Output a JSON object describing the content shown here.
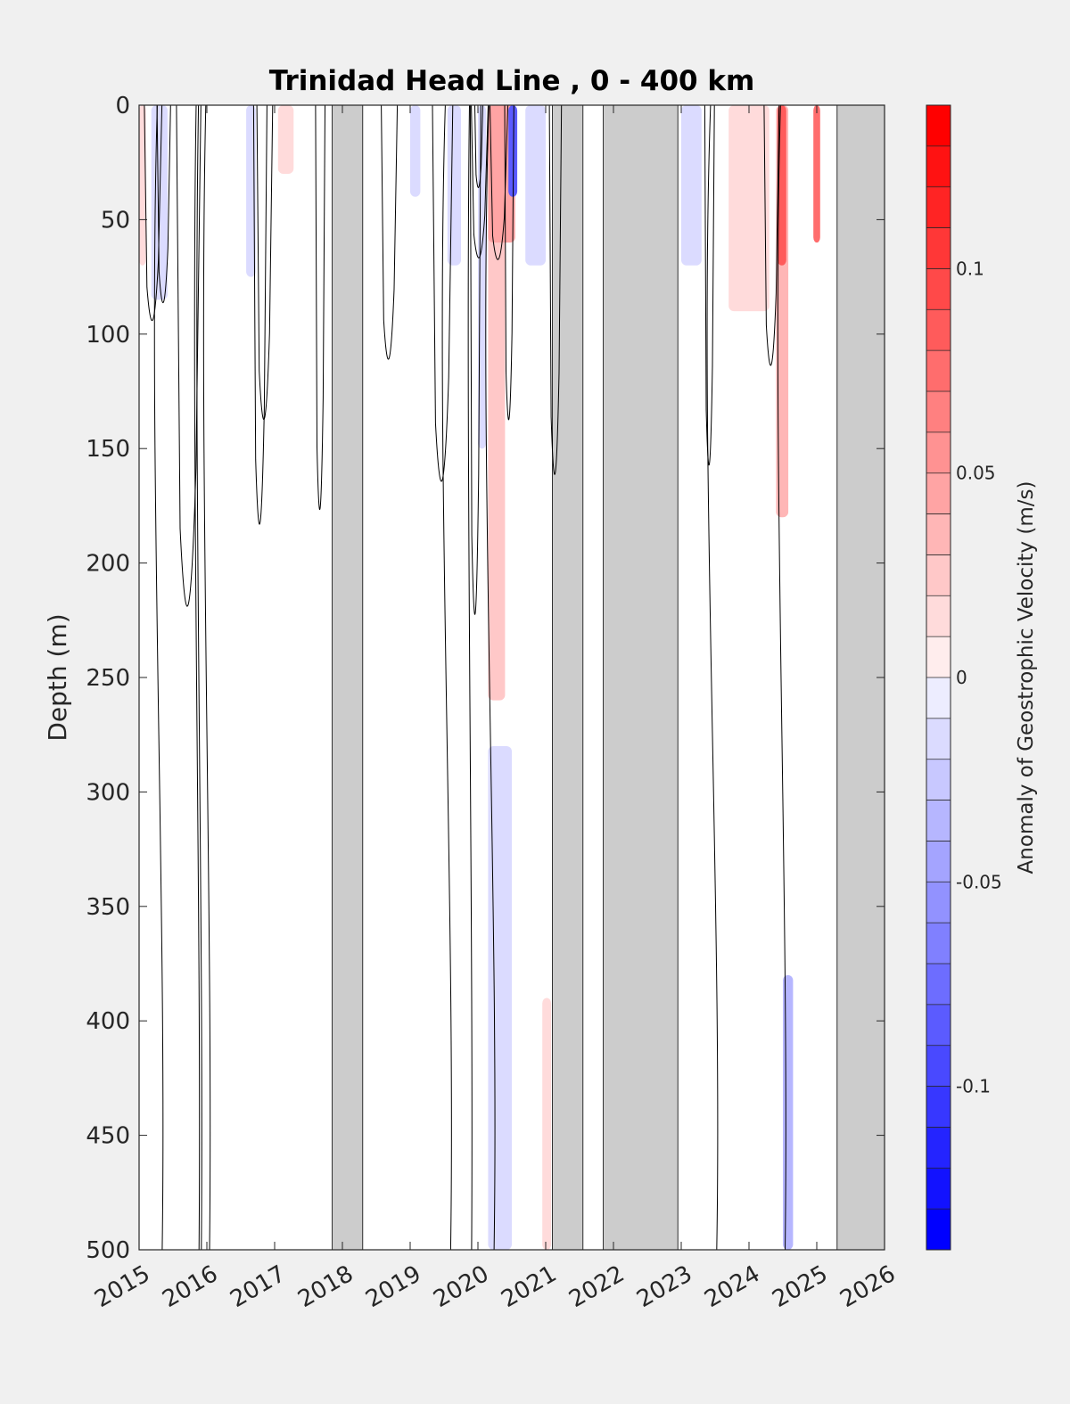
{
  "chart_data": {
    "type": "heatmap",
    "title": "Trinidad Head Line , 0 - 400 km",
    "xlabel": "",
    "ylabel": "Depth (m)",
    "x_ticks": [
      "2015",
      "2016",
      "2017",
      "2018",
      "2019",
      "2020",
      "2021",
      "2022",
      "2023",
      "2024",
      "2025",
      "2026"
    ],
    "xlim": [
      2015,
      2026
    ],
    "y_ticks": [
      "0",
      "50",
      "100",
      "150",
      "200",
      "250",
      "300",
      "350",
      "400",
      "450",
      "500"
    ],
    "ylim": [
      0,
      500
    ],
    "y_reversed": true,
    "grid": false,
    "colorbar": {
      "label": "Anomaly of Geostrophic Velocity (m/s)",
      "range": [
        -0.14,
        0.14
      ],
      "levels": 28,
      "ticks": [
        {
          "value": 0.1,
          "label": "0.1"
        },
        {
          "value": 0.05,
          "label": "0.05"
        },
        {
          "value": 0,
          "label": "0"
        },
        {
          "value": -0.05,
          "label": "-0.05"
        },
        {
          "value": -0.1,
          "label": "-0.1"
        }
      ],
      "low_color": "#0000ff",
      "mid_color": "#ffffff",
      "high_color": "#ff0000"
    },
    "no_data_color": "#cccccc",
    "no_data_periods": [
      [
        2017.85,
        2018.3
      ],
      [
        2021.1,
        2021.55
      ],
      [
        2021.85,
        2022.95
      ],
      [
        2025.3,
        2026.0
      ]
    ],
    "anomaly_patches": [
      {
        "x0": 2015.18,
        "x1": 2015.42,
        "d0": 0,
        "d1": 85,
        "value": -0.02
      },
      {
        "x0": 2015.0,
        "x1": 2015.1,
        "d0": 0,
        "d1": 70,
        "value": 0.015
      },
      {
        "x0": 2016.58,
        "x1": 2016.72,
        "d0": 0,
        "d1": 75,
        "value": -0.02
      },
      {
        "x0": 2017.05,
        "x1": 2017.28,
        "d0": 0,
        "d1": 30,
        "value": 0.02
      },
      {
        "x0": 2019.0,
        "x1": 2019.15,
        "d0": 0,
        "d1": 40,
        "value": -0.015
      },
      {
        "x0": 2019.55,
        "x1": 2019.75,
        "d0": 0,
        "d1": 70,
        "value": -0.02
      },
      {
        "x0": 2020.0,
        "x1": 2020.12,
        "d0": 0,
        "d1": 150,
        "value": -0.015
      },
      {
        "x0": 2020.15,
        "x1": 2020.4,
        "d0": 0,
        "d1": 260,
        "value": 0.03
      },
      {
        "x0": 2020.15,
        "x1": 2020.55,
        "d0": 0,
        "d1": 60,
        "value": 0.05
      },
      {
        "x0": 2020.45,
        "x1": 2020.58,
        "d0": 0,
        "d1": 40,
        "value": -0.09
      },
      {
        "x0": 2020.7,
        "x1": 2021.0,
        "d0": 0,
        "d1": 70,
        "value": -0.02
      },
      {
        "x0": 2020.15,
        "x1": 2020.5,
        "d0": 280,
        "d1": 500,
        "value": -0.02
      },
      {
        "x0": 2020.95,
        "x1": 2021.08,
        "d0": 390,
        "d1": 500,
        "value": 0.015
      },
      {
        "x0": 2023.0,
        "x1": 2023.3,
        "d0": 0,
        "d1": 70,
        "value": -0.015
      },
      {
        "x0": 2023.7,
        "x1": 2024.3,
        "d0": 0,
        "d1": 90,
        "value": 0.02
      },
      {
        "x0": 2024.4,
        "x1": 2024.58,
        "d0": 0,
        "d1": 180,
        "value": 0.04
      },
      {
        "x0": 2024.42,
        "x1": 2024.55,
        "d0": 0,
        "d1": 70,
        "value": 0.09
      },
      {
        "x0": 2024.5,
        "x1": 2024.65,
        "d0": 380,
        "d1": 500,
        "value": -0.04
      },
      {
        "x0": 2024.95,
        "x1": 2025.05,
        "d0": 0,
        "d1": 60,
        "value": 0.08
      }
    ]
  }
}
